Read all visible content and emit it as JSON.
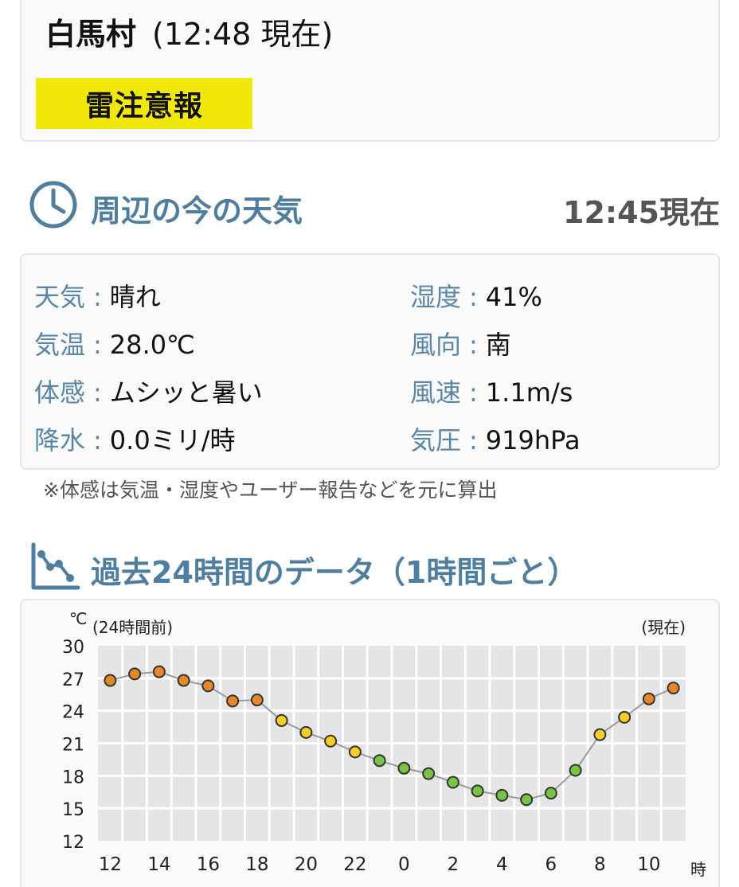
{
  "location": {
    "name": "白馬村",
    "observed_time": "(12:48 現在)"
  },
  "warning": {
    "label": "雷注意報",
    "color": "#f1e80a"
  },
  "current_weather": {
    "title": "周辺の今の天気",
    "as_of": "12:45現在",
    "separator": ":",
    "items": [
      {
        "label": "天気",
        "value": "晴れ"
      },
      {
        "label": "気温",
        "value": "28.0℃"
      },
      {
        "label": "体感",
        "value": "ムシッと暑い"
      },
      {
        "label": "降水",
        "value": "0.0ミリ/時"
      },
      {
        "label": "湿度",
        "value": "41%"
      },
      {
        "label": "風向",
        "value": "南"
      },
      {
        "label": "風速",
        "value": "1.1m/s"
      },
      {
        "label": "気圧",
        "value": "919hPa"
      }
    ],
    "note": "※体感は気温・湿度やユーザー報告などを元に算出"
  },
  "history": {
    "title": "過去24時間のデータ（1時間ごと）"
  },
  "icons": {
    "weather_section": "clock-icon",
    "history_section": "line-chart-icon"
  },
  "colors": {
    "accent": "#4f7e9f",
    "hot": "#e8872a",
    "warm": "#f3cf22",
    "mild": "#78c443"
  },
  "chart_data": {
    "type": "line",
    "y_unit": "℃",
    "x_unit": "時",
    "start_label": "(24時間前)",
    "end_label": "(現在)",
    "ylim": [
      12,
      30
    ],
    "y_ticks": [
      "30",
      "27",
      "24",
      "21",
      "18",
      "15",
      "12"
    ],
    "x_tick_labels": [
      "12",
      "14",
      "16",
      "18",
      "20",
      "22",
      "0",
      "2",
      "4",
      "6",
      "8",
      "10"
    ],
    "x": [
      "12",
      "13",
      "14",
      "15",
      "16",
      "17",
      "18",
      "19",
      "20",
      "21",
      "22",
      "23",
      "0",
      "1",
      "2",
      "3",
      "4",
      "5",
      "6",
      "7",
      "8",
      "9",
      "10",
      "11"
    ],
    "series": [
      {
        "values": [
          26.8,
          27.4,
          27.6,
          26.8,
          26.3,
          24.9,
          25.0,
          23.1,
          22.0,
          21.2,
          20.2,
          19.4,
          18.7,
          18.2,
          17.4,
          16.6,
          16.2,
          15.8,
          16.4,
          18.5,
          21.8,
          23.4,
          25.1,
          26.1
        ]
      }
    ],
    "grid": true,
    "point_colors": {
      "hot_min": 24.5,
      "warm_min": 20.0
    }
  }
}
